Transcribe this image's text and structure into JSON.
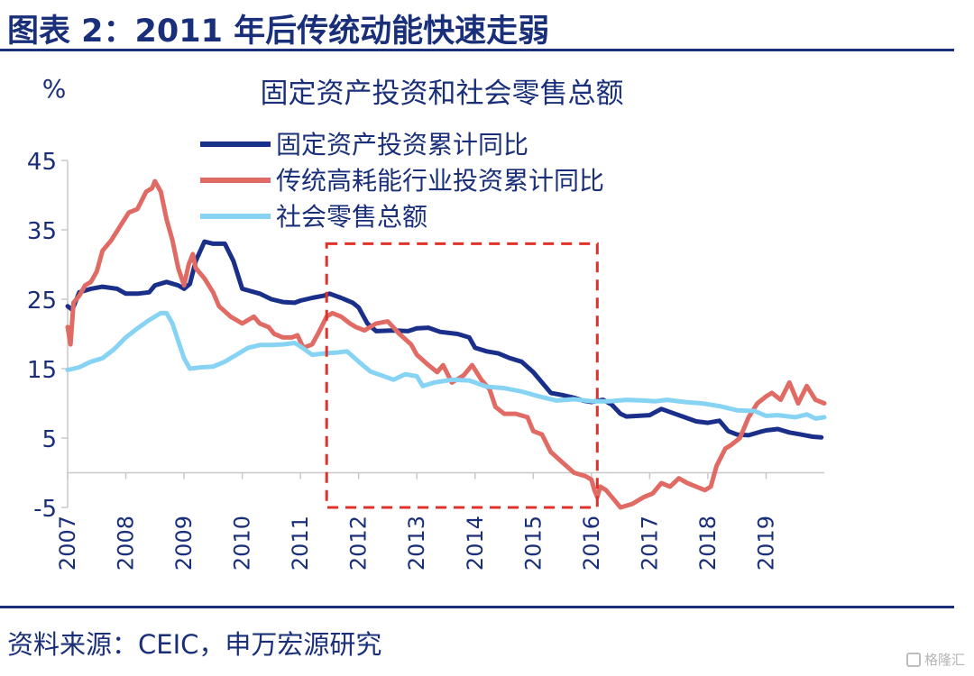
{
  "figure": {
    "title": "图表 2：2011 年后传统动能快速走弱",
    "source": "资料来源：CEIC，申万宏源研究",
    "watermark": "格隆汇"
  },
  "colors": {
    "fixed_asset": "#1a2f8a",
    "traditional": "#e06a64",
    "retail": "#86d3f4",
    "highlight_box": "#e0302a",
    "text": "#1a2f7a"
  },
  "chart_data": {
    "type": "line",
    "title": "固定资产投资和社会零售总额",
    "ylabel": "%",
    "xlabel": "",
    "ylim": [
      -5,
      45
    ],
    "yticks": [
      -5,
      5,
      15,
      25,
      35,
      45
    ],
    "xlim": [
      2007,
      2020
    ],
    "xticks": [
      2007,
      2008,
      2009,
      2010,
      2011,
      2012,
      2013,
      2014,
      2015,
      2016,
      2017,
      2018,
      2019
    ],
    "legend": "top-center",
    "grid": false,
    "highlight": {
      "x": [
        2011.45,
        2016.1
      ],
      "y": [
        -5,
        33
      ]
    },
    "series": [
      {
        "name": "固定资产投资累计同比",
        "color_key": "fixed_asset",
        "points": [
          [
            2007.0,
            24.0
          ],
          [
            2007.08,
            23.5
          ],
          [
            2007.2,
            26.0
          ],
          [
            2007.4,
            26.5
          ],
          [
            2007.6,
            26.8
          ],
          [
            2007.85,
            26.5
          ],
          [
            2008.0,
            25.8
          ],
          [
            2008.2,
            25.8
          ],
          [
            2008.4,
            26.0
          ],
          [
            2008.5,
            27.0
          ],
          [
            2008.7,
            27.5
          ],
          [
            2008.9,
            27.0
          ],
          [
            2009.0,
            26.5
          ],
          [
            2009.1,
            27.2
          ],
          [
            2009.2,
            30.5
          ],
          [
            2009.35,
            33.3
          ],
          [
            2009.5,
            33.0
          ],
          [
            2009.7,
            33.0
          ],
          [
            2009.85,
            30.5
          ],
          [
            2010.0,
            26.5
          ],
          [
            2010.3,
            25.8
          ],
          [
            2010.5,
            25.0
          ],
          [
            2010.7,
            24.6
          ],
          [
            2010.9,
            24.5
          ],
          [
            2011.0,
            24.8
          ],
          [
            2011.2,
            25.2
          ],
          [
            2011.4,
            25.5
          ],
          [
            2011.5,
            25.8
          ],
          [
            2011.7,
            25.2
          ],
          [
            2011.9,
            24.5
          ],
          [
            2012.0,
            23.8
          ],
          [
            2012.15,
            21.5
          ],
          [
            2012.3,
            20.4
          ],
          [
            2012.6,
            20.5
          ],
          [
            2012.85,
            20.4
          ],
          [
            2013.0,
            20.8
          ],
          [
            2013.2,
            20.9
          ],
          [
            2013.4,
            20.3
          ],
          [
            2013.7,
            20.0
          ],
          [
            2013.9,
            19.5
          ],
          [
            2014.0,
            18.0
          ],
          [
            2014.2,
            17.5
          ],
          [
            2014.4,
            17.2
          ],
          [
            2014.6,
            16.5
          ],
          [
            2014.8,
            16.0
          ],
          [
            2015.0,
            14.5
          ],
          [
            2015.15,
            13.0
          ],
          [
            2015.3,
            11.5
          ],
          [
            2015.5,
            11.2
          ],
          [
            2015.7,
            10.8
          ],
          [
            2015.85,
            10.4
          ],
          [
            2016.0,
            10.2
          ],
          [
            2016.2,
            10.5
          ],
          [
            2016.35,
            9.8
          ],
          [
            2016.5,
            8.5
          ],
          [
            2016.6,
            8.1
          ],
          [
            2016.8,
            8.2
          ],
          [
            2017.0,
            8.3
          ],
          [
            2017.2,
            9.2
          ],
          [
            2017.4,
            8.6
          ],
          [
            2017.6,
            8.0
          ],
          [
            2017.8,
            7.4
          ],
          [
            2018.0,
            7.2
          ],
          [
            2018.2,
            7.5
          ],
          [
            2018.35,
            6.0
          ],
          [
            2018.5,
            5.5
          ],
          [
            2018.7,
            5.4
          ],
          [
            2018.9,
            5.9
          ],
          [
            2019.0,
            6.1
          ],
          [
            2019.2,
            6.3
          ],
          [
            2019.4,
            5.8
          ],
          [
            2019.6,
            5.5
          ],
          [
            2019.8,
            5.2
          ],
          [
            2019.95,
            5.1
          ]
        ]
      },
      {
        "name": "传统高耗能行业投资累计同比",
        "color_key": "traditional",
        "points": [
          [
            2007.0,
            21.0
          ],
          [
            2007.05,
            18.5
          ],
          [
            2007.1,
            24.5
          ],
          [
            2007.2,
            25.5
          ],
          [
            2007.3,
            27.0
          ],
          [
            2007.4,
            27.5
          ],
          [
            2007.5,
            29.0
          ],
          [
            2007.6,
            32.0
          ],
          [
            2007.75,
            33.5
          ],
          [
            2007.9,
            35.5
          ],
          [
            2008.05,
            37.5
          ],
          [
            2008.2,
            38.0
          ],
          [
            2008.35,
            40.5
          ],
          [
            2008.45,
            41.0
          ],
          [
            2008.5,
            42.0
          ],
          [
            2008.6,
            40.5
          ],
          [
            2008.7,
            36.5
          ],
          [
            2008.8,
            33.5
          ],
          [
            2008.9,
            29.5
          ],
          [
            2009.0,
            27.0
          ],
          [
            2009.08,
            30.0
          ],
          [
            2009.15,
            31.5
          ],
          [
            2009.2,
            29.5
          ],
          [
            2009.35,
            28.0
          ],
          [
            2009.5,
            26.0
          ],
          [
            2009.6,
            24.0
          ],
          [
            2009.8,
            22.5
          ],
          [
            2010.0,
            21.5
          ],
          [
            2010.2,
            22.5
          ],
          [
            2010.3,
            21.5
          ],
          [
            2010.45,
            21.0
          ],
          [
            2010.55,
            20.0
          ],
          [
            2010.7,
            19.5
          ],
          [
            2010.85,
            19.5
          ],
          [
            2010.95,
            19.8
          ],
          [
            2011.05,
            18.0
          ],
          [
            2011.2,
            18.5
          ],
          [
            2011.3,
            20.0
          ],
          [
            2011.45,
            22.5
          ],
          [
            2011.55,
            23.0
          ],
          [
            2011.7,
            22.5
          ],
          [
            2011.85,
            21.5
          ],
          [
            2011.95,
            21.0
          ],
          [
            2012.1,
            20.5
          ],
          [
            2012.3,
            21.5
          ],
          [
            2012.5,
            21.8
          ],
          [
            2012.7,
            20.0
          ],
          [
            2012.9,
            18.5
          ],
          [
            2013.0,
            17.0
          ],
          [
            2013.2,
            15.5
          ],
          [
            2013.35,
            14.5
          ],
          [
            2013.45,
            15.5
          ],
          [
            2013.6,
            13.0
          ],
          [
            2013.8,
            14.0
          ],
          [
            2013.95,
            15.5
          ],
          [
            2014.1,
            13.5
          ],
          [
            2014.25,
            12.0
          ],
          [
            2014.35,
            9.5
          ],
          [
            2014.5,
            8.5
          ],
          [
            2014.7,
            8.5
          ],
          [
            2014.9,
            8.0
          ],
          [
            2015.0,
            6.0
          ],
          [
            2015.15,
            5.5
          ],
          [
            2015.3,
            3.0
          ],
          [
            2015.5,
            1.5
          ],
          [
            2015.7,
            0.0
          ],
          [
            2015.9,
            -0.5
          ],
          [
            2016.0,
            -1.0
          ],
          [
            2016.05,
            -2.5
          ],
          [
            2016.1,
            -3.5
          ],
          [
            2016.15,
            -2.0
          ],
          [
            2016.25,
            -2.5
          ],
          [
            2016.4,
            -4.0
          ],
          [
            2016.5,
            -5.0
          ],
          [
            2016.7,
            -4.5
          ],
          [
            2016.9,
            -3.5
          ],
          [
            2017.05,
            -3.0
          ],
          [
            2017.2,
            -1.5
          ],
          [
            2017.35,
            -2.0
          ],
          [
            2017.5,
            -0.8
          ],
          [
            2017.65,
            -1.5
          ],
          [
            2017.8,
            -2.0
          ],
          [
            2017.95,
            -2.5
          ],
          [
            2018.05,
            -2.0
          ],
          [
            2018.15,
            1.0
          ],
          [
            2018.3,
            3.5
          ],
          [
            2018.4,
            4.0
          ],
          [
            2018.55,
            5.0
          ],
          [
            2018.7,
            8.0
          ],
          [
            2018.85,
            10.0
          ],
          [
            2019.0,
            11.0
          ],
          [
            2019.1,
            11.5
          ],
          [
            2019.25,
            10.5
          ],
          [
            2019.4,
            13.0
          ],
          [
            2019.55,
            10.0
          ],
          [
            2019.7,
            12.5
          ],
          [
            2019.85,
            10.5
          ],
          [
            2020.0,
            10.0
          ]
        ]
      },
      {
        "name": "社会零售总额",
        "color_key": "retail",
        "points": [
          [
            2007.0,
            14.8
          ],
          [
            2007.2,
            15.2
          ],
          [
            2007.4,
            16.0
          ],
          [
            2007.6,
            16.5
          ],
          [
            2007.8,
            17.8
          ],
          [
            2008.0,
            19.5
          ],
          [
            2008.2,
            20.8
          ],
          [
            2008.4,
            22.0
          ],
          [
            2008.6,
            23.0
          ],
          [
            2008.7,
            23.0
          ],
          [
            2008.8,
            21.5
          ],
          [
            2008.9,
            19.0
          ],
          [
            2009.0,
            16.5
          ],
          [
            2009.1,
            15.0
          ],
          [
            2009.3,
            15.2
          ],
          [
            2009.5,
            15.3
          ],
          [
            2009.7,
            16.0
          ],
          [
            2009.9,
            17.0
          ],
          [
            2010.1,
            18.0
          ],
          [
            2010.3,
            18.4
          ],
          [
            2010.5,
            18.4
          ],
          [
            2010.7,
            18.5
          ],
          [
            2010.9,
            18.7
          ],
          [
            2011.0,
            18.2
          ],
          [
            2011.2,
            17.0
          ],
          [
            2011.4,
            17.2
          ],
          [
            2011.6,
            17.3
          ],
          [
            2011.8,
            17.5
          ],
          [
            2012.0,
            16.0
          ],
          [
            2012.2,
            14.6
          ],
          [
            2012.4,
            14.0
          ],
          [
            2012.6,
            13.4
          ],
          [
            2012.8,
            14.2
          ],
          [
            2013.0,
            13.9
          ],
          [
            2013.1,
            12.5
          ],
          [
            2013.3,
            13.0
          ],
          [
            2013.6,
            13.4
          ],
          [
            2013.9,
            13.3
          ],
          [
            2014.2,
            12.4
          ],
          [
            2014.5,
            12.2
          ],
          [
            2014.8,
            11.7
          ],
          [
            2015.1,
            11.0
          ],
          [
            2015.4,
            10.4
          ],
          [
            2015.7,
            10.6
          ],
          [
            2016.0,
            10.3
          ],
          [
            2016.3,
            10.3
          ],
          [
            2016.6,
            10.5
          ],
          [
            2016.9,
            10.4
          ],
          [
            2017.1,
            10.3
          ],
          [
            2017.3,
            10.5
          ],
          [
            2017.6,
            10.2
          ],
          [
            2017.9,
            10.0
          ],
          [
            2018.2,
            9.6
          ],
          [
            2018.5,
            9.0
          ],
          [
            2018.8,
            8.9
          ],
          [
            2019.0,
            8.2
          ],
          [
            2019.2,
            8.3
          ],
          [
            2019.5,
            8.0
          ],
          [
            2019.7,
            8.4
          ],
          [
            2019.85,
            7.8
          ],
          [
            2020.0,
            8.0
          ]
        ]
      }
    ]
  }
}
